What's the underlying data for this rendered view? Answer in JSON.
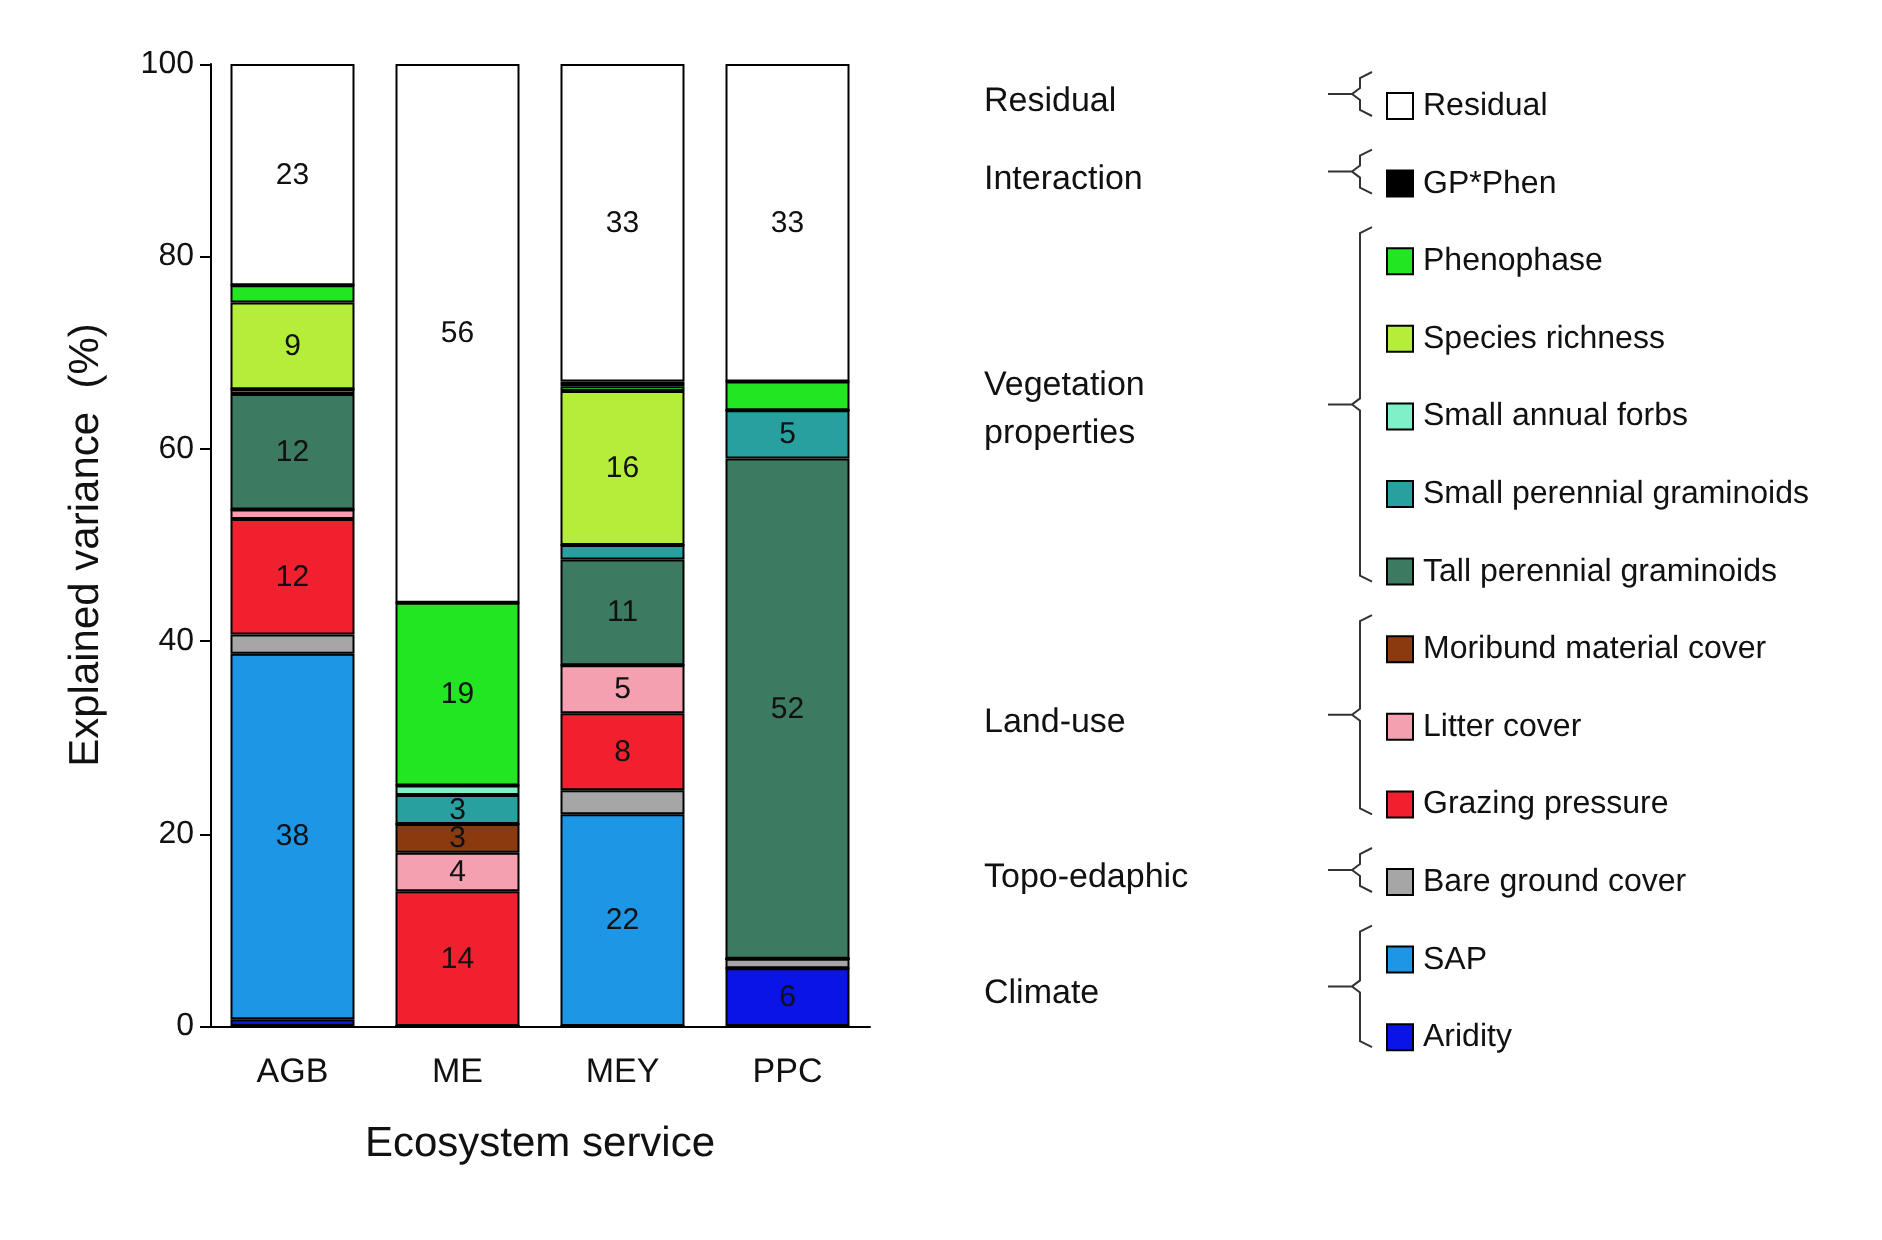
{
  "chart_data": {
    "type": "bar",
    "stacked": true,
    "xlabel": "Ecosystem service",
    "ylabel": "Explained variance  (%)",
    "categories": [
      "AGB",
      "ME",
      "MEY",
      "PPC"
    ],
    "ylim": [
      0,
      100
    ],
    "yticks": [
      0,
      20,
      40,
      60,
      80,
      100
    ],
    "grid": false,
    "legend": "right",
    "annotations": [
      "Residual",
      "Interaction",
      "Vegetation properties",
      "Land-use",
      "Topo-edaphic",
      "Climate"
    ],
    "series": [
      {
        "name": "Aridity",
        "color": "#0a14e6",
        "values": [
          0.7,
          0,
          0,
          6
        ],
        "value_labels": [
          null,
          null,
          null,
          "6"
        ]
      },
      {
        "name": "SAP",
        "color": "#1e96e6",
        "values": [
          38,
          0,
          22,
          0
        ],
        "value_labels": [
          "38",
          null,
          "22",
          null
        ]
      },
      {
        "name": "Bare ground cover",
        "color": "#a6a6a6",
        "values": [
          2,
          0,
          2.5,
          1
        ],
        "value_labels": [
          null,
          null,
          null,
          null
        ]
      },
      {
        "name": "Grazing pressure",
        "color": "#f0202e",
        "values": [
          12,
          14,
          8,
          0
        ],
        "value_labels": [
          "12",
          "14",
          "8",
          null
        ]
      },
      {
        "name": "Litter cover",
        "color": "#f5a0b0",
        "values": [
          1,
          4,
          5,
          0
        ],
        "value_labels": [
          null,
          "4",
          "5",
          null
        ]
      },
      {
        "name": "Moribund material cover",
        "color": "#8b3a10",
        "values": [
          0,
          3,
          0,
          0
        ],
        "value_labels": [
          null,
          "3",
          null,
          null
        ]
      },
      {
        "name": "Tall perennial graminoids",
        "color": "#3c7a62",
        "values": [
          12,
          0,
          11,
          52
        ],
        "value_labels": [
          "12",
          null,
          "11",
          "52"
        ]
      },
      {
        "name": "Small perennial graminoids",
        "color": "#28a0a0",
        "values": [
          0.5,
          3,
          1.5,
          5
        ],
        "value_labels": [
          null,
          "3",
          null,
          "5"
        ]
      },
      {
        "name": "Small annual forbs",
        "color": "#80f0c8",
        "values": [
          0,
          1,
          0,
          0
        ],
        "value_labels": [
          null,
          null,
          null,
          null
        ]
      },
      {
        "name": "Species richness",
        "color": "#b4ee3a",
        "values": [
          9,
          0,
          16,
          0
        ],
        "value_labels": [
          "9",
          null,
          "16",
          null
        ]
      },
      {
        "name": "Phenophase",
        "color": "#22e622",
        "values": [
          1.8,
          19,
          0.5,
          3
        ],
        "value_labels": [
          null,
          "19",
          null,
          null
        ]
      },
      {
        "name": "GP*Phen",
        "color": "#000000",
        "values": [
          0,
          0,
          0.5,
          0
        ],
        "value_labels": [
          null,
          null,
          null,
          null
        ]
      },
      {
        "name": "Residual",
        "color": "#ffffff",
        "values": [
          23,
          56,
          33,
          33
        ],
        "value_labels": [
          "23",
          "56",
          "33",
          "33"
        ]
      }
    ]
  }
}
